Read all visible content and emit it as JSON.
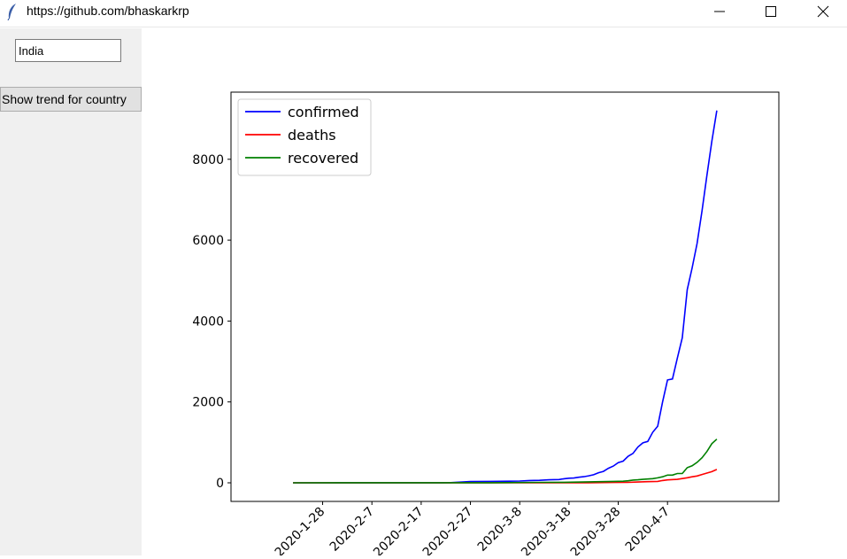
{
  "window": {
    "title": "https://github.com/bhaskarkrp",
    "minimize_icon": "minimize-icon",
    "maximize_icon": "maximize-icon",
    "close_icon": "close-icon"
  },
  "controls": {
    "country_value": "India",
    "button_label": "Show trend for country"
  },
  "chart_data": {
    "type": "line",
    "x_tick_labels": [
      "2020-1-28",
      "2020-2-7",
      "2020-2-17",
      "2020-2-27",
      "2020-3-8",
      "2020-3-18",
      "2020-3-28",
      "2020-4-7"
    ],
    "x_tick_days": [
      6,
      16,
      26,
      36,
      46,
      56,
      66,
      76
    ],
    "xlim": [
      -12.6,
      98.6
    ],
    "ylim": [
      -460,
      9660
    ],
    "y_ticks": [
      0,
      2000,
      4000,
      6000,
      8000
    ],
    "y_tick_labels": [
      "0",
      "2000",
      "4000",
      "6000",
      "8000"
    ],
    "legend_position": "top-left",
    "series": [
      {
        "name": "confirmed",
        "color": "#0000ff",
        "points": [
          [
            0,
            0
          ],
          [
            8,
            1
          ],
          [
            9,
            2
          ],
          [
            10,
            3
          ],
          [
            20,
            3
          ],
          [
            30,
            3
          ],
          [
            32,
            5
          ],
          [
            36,
            30
          ],
          [
            40,
            34
          ],
          [
            44,
            39
          ],
          [
            46,
            43
          ],
          [
            48,
            56
          ],
          [
            50,
            62
          ],
          [
            52,
            75
          ],
          [
            54,
            82
          ],
          [
            55,
            100
          ],
          [
            56,
            113
          ],
          [
            57,
            118
          ],
          [
            58,
            137
          ],
          [
            59,
            151
          ],
          [
            60,
            173
          ],
          [
            61,
            200
          ],
          [
            62,
            250
          ],
          [
            63,
            283
          ],
          [
            64,
            360
          ],
          [
            65,
            415
          ],
          [
            66,
            499
          ],
          [
            67,
            536
          ],
          [
            68,
            657
          ],
          [
            69,
            727
          ],
          [
            70,
            887
          ],
          [
            71,
            987
          ],
          [
            72,
            1024
          ],
          [
            73,
            1251
          ],
          [
            74,
            1397
          ],
          [
            75,
            1998
          ],
          [
            76,
            2543
          ],
          [
            77,
            2567
          ],
          [
            78,
            3082
          ],
          [
            79,
            3588
          ],
          [
            80,
            4778
          ],
          [
            81,
            5311
          ],
          [
            82,
            5916
          ],
          [
            83,
            6725
          ],
          [
            84,
            7598
          ],
          [
            85,
            8446
          ],
          [
            86,
            9205
          ]
        ]
      },
      {
        "name": "deaths",
        "color": "#ff0000",
        "points": [
          [
            0,
            0
          ],
          [
            40,
            0
          ],
          [
            60,
            3
          ],
          [
            65,
            9
          ],
          [
            68,
            12
          ],
          [
            70,
            20
          ],
          [
            72,
            29
          ],
          [
            74,
            35
          ],
          [
            75,
            58
          ],
          [
            76,
            72
          ],
          [
            78,
            86
          ],
          [
            80,
            124
          ],
          [
            81,
            149
          ],
          [
            82,
            169
          ],
          [
            83,
            206
          ],
          [
            84,
            242
          ],
          [
            85,
            275
          ],
          [
            86,
            331
          ]
        ]
      },
      {
        "name": "recovered",
        "color": "#008000",
        "points": [
          [
            0,
            0
          ],
          [
            40,
            3
          ],
          [
            50,
            10
          ],
          [
            55,
            14
          ],
          [
            60,
            23
          ],
          [
            65,
            35
          ],
          [
            67,
            40
          ],
          [
            68,
            50
          ],
          [
            69,
            67
          ],
          [
            70,
            75
          ],
          [
            71,
            85
          ],
          [
            72,
            95
          ],
          [
            73,
            102
          ],
          [
            74,
            123
          ],
          [
            75,
            148
          ],
          [
            76,
            191
          ],
          [
            77,
            191
          ],
          [
            78,
            229
          ],
          [
            79,
            229
          ],
          [
            80,
            375
          ],
          [
            81,
            421
          ],
          [
            82,
            506
          ],
          [
            83,
            620
          ],
          [
            84,
            774
          ],
          [
            85,
            969
          ],
          [
            86,
            1080
          ]
        ]
      }
    ]
  }
}
